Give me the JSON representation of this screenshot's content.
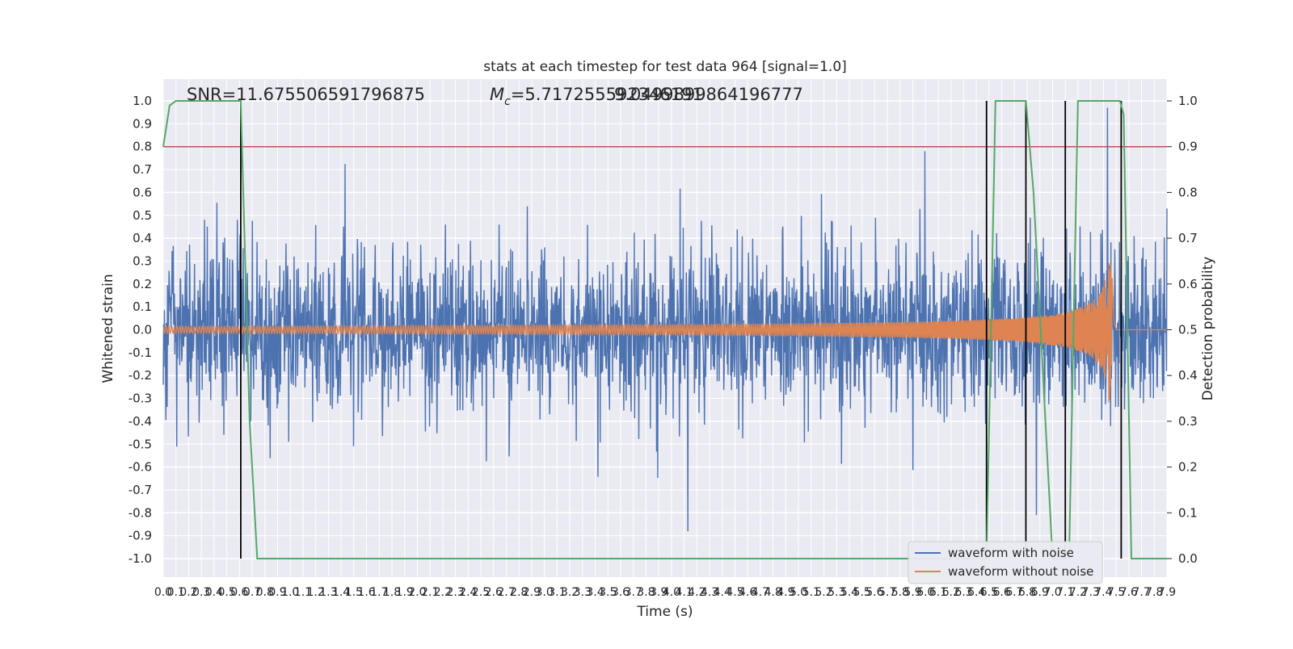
{
  "chart_data": {
    "type": "line",
    "title": "stats at each timestep for test data 964 [signal=1.0]",
    "xlabel": "Time (s)",
    "ylabel": "Whitened strain",
    "y2label": "Detection probability",
    "xlim": [
      0.0,
      7.9
    ],
    "ylim": [
      -1.0,
      1.0
    ],
    "y2lim": [
      0.0,
      1.0
    ],
    "x_ticks": [
      "0.0",
      "0.1",
      "0.2",
      "0.3",
      "0.4",
      "0.5",
      "0.6",
      "0.7",
      "0.8",
      "0.9",
      "1.0",
      "1.1",
      "1.2",
      "1.3",
      "1.4",
      "1.5",
      "1.6",
      "1.7",
      "1.8",
      "1.9",
      "2.0",
      "2.1",
      "2.2",
      "2.3",
      "2.4",
      "2.5",
      "2.6",
      "2.7",
      "2.8",
      "2.9",
      "3.0",
      "3.1",
      "3.2",
      "3.3",
      "3.4",
      "3.5",
      "3.6",
      "3.7",
      "3.8",
      "3.9",
      "4.0",
      "4.1",
      "4.2",
      "4.3",
      "4.4",
      "4.5",
      "4.6",
      "4.7",
      "4.8",
      "4.9",
      "5.0",
      "5.1",
      "5.2",
      "5.3",
      "5.4",
      "5.5",
      "5.6",
      "5.7",
      "5.8",
      "5.9",
      "6.0",
      "6.1",
      "6.2",
      "6.3",
      "6.4",
      "6.5",
      "6.6",
      "6.7",
      "6.8",
      "6.9",
      "7.0",
      "7.1",
      "7.2",
      "7.3",
      "7.4",
      "7.5",
      "7.6",
      "7.7",
      "7.8",
      "7.9"
    ],
    "y_ticks": [
      "1.0",
      "0.9",
      "0.8",
      "0.7",
      "0.6",
      "0.5",
      "0.4",
      "0.3",
      "0.2",
      "0.1",
      "0.0",
      "-0.1",
      "-0.2",
      "-0.3",
      "-0.4",
      "-0.5",
      "-0.6",
      "-0.7",
      "-0.8",
      "-0.9",
      "-1.0"
    ],
    "y2_ticks": [
      "1.0",
      "0.9",
      "0.8",
      "0.7",
      "0.6",
      "0.5",
      "0.4",
      "0.3",
      "0.2",
      "0.1",
      "0.0"
    ],
    "annotations": {
      "snr": "SNR=11.675506591796875",
      "mc_symbol": "M",
      "mc_sub": "c",
      "mc_value": "=5.717255592346191",
      "overlap_text": "9.0499899864196777"
    },
    "threshold": {
      "value": 0.9,
      "axis": "y2",
      "color": "#c44e52"
    },
    "detection_markers_x": [
      0.61,
      6.48,
      6.79,
      7.1,
      7.54
    ],
    "series": [
      {
        "name": "waveform with noise",
        "color": "#4c72b0",
        "envelope": 0.45,
        "noise_std": 0.17
      },
      {
        "name": "waveform without noise",
        "color": "#dd8452",
        "merger_time": 7.47,
        "peak_amplitude": 0.32,
        "base_amplitude": 0.015
      },
      {
        "color": "#55a868",
        "axis": "y2",
        "x": [
          0.0,
          0.05,
          0.1,
          0.61,
          0.68,
          0.74,
          6.48,
          6.55,
          6.79,
          6.85,
          7.0,
          7.13,
          7.2,
          7.53,
          7.56,
          7.62,
          7.9
        ],
        "values": [
          0.9,
          0.99,
          1.0,
          1.0,
          0.3,
          0.0,
          0.0,
          1.0,
          1.0,
          0.8,
          0.0,
          0.0,
          1.0,
          1.0,
          0.97,
          0.0,
          0.0
        ]
      }
    ],
    "legend": {
      "position": "lower right"
    },
    "grid": true
  }
}
